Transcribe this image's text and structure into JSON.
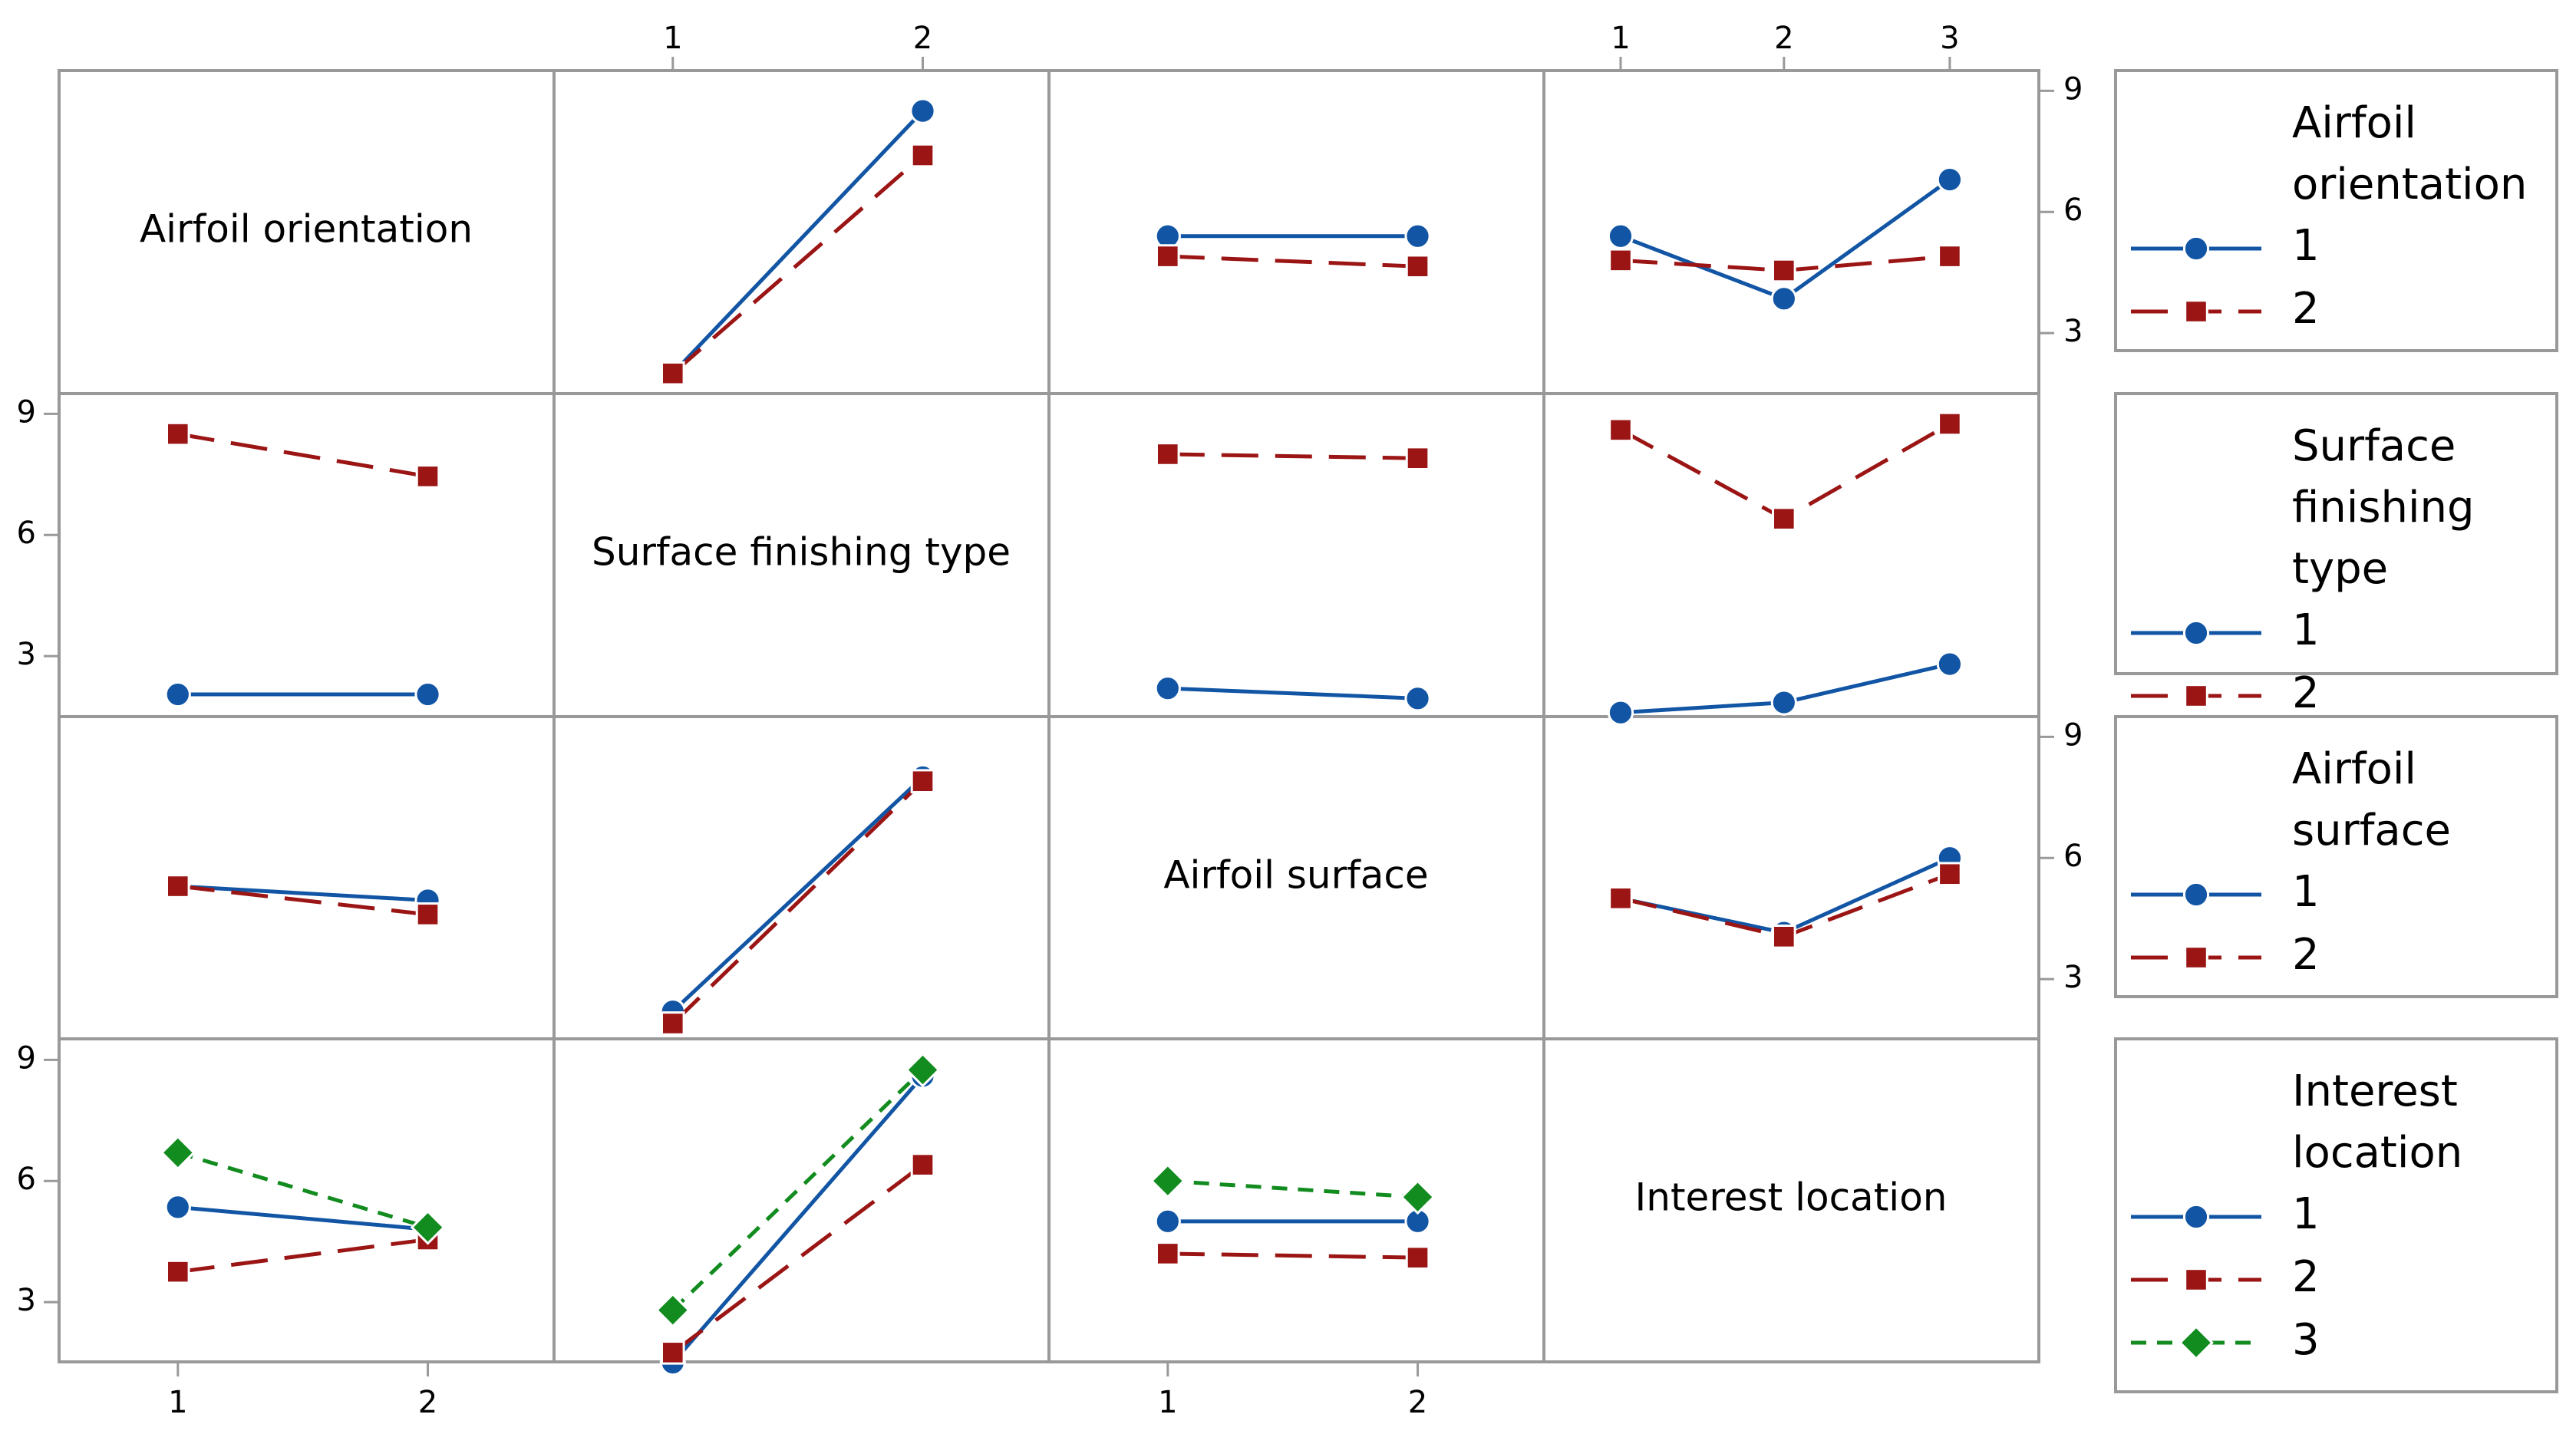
{
  "colors": {
    "level1": "#1155a4",
    "level2": "#9b1515",
    "level3": "#128b1f"
  },
  "chart_data": {
    "type": "line",
    "title": "",
    "y_ticks": [
      3,
      6,
      9
    ],
    "ylim": [
      1.5,
      9.5
    ],
    "factors": [
      {
        "name": "Airfoil orientation",
        "levels": [
          "1",
          "2"
        ]
      },
      {
        "name": "Surface finishing type",
        "levels": [
          "1",
          "2"
        ]
      },
      {
        "name": "Airfoil surface",
        "levels": [
          "1",
          "2"
        ]
      },
      {
        "name": "Interest location",
        "levels": [
          "1",
          "2",
          "3"
        ]
      }
    ],
    "legends": [
      {
        "title_lines": [
          "Airfoil",
          "orientation"
        ],
        "entries": [
          "1",
          "2"
        ]
      },
      {
        "title_lines": [
          "Surface",
          "finishing",
          "type"
        ],
        "entries": [
          "1",
          "2"
        ]
      },
      {
        "title_lines": [
          "Airfoil",
          "surface"
        ],
        "entries": [
          "1",
          "2"
        ]
      },
      {
        "title_lines": [
          "Interest",
          "location"
        ],
        "entries": [
          "1",
          "2",
          "3"
        ]
      }
    ],
    "panels": [
      {
        "row": 0,
        "col": 1,
        "series": [
          {
            "name": "1",
            "values": [
              2.0,
              8.5
            ]
          },
          {
            "name": "2",
            "values": [
              2.0,
              7.4
            ]
          }
        ]
      },
      {
        "row": 0,
        "col": 2,
        "series": [
          {
            "name": "1",
            "values": [
              5.4,
              5.4
            ]
          },
          {
            "name": "2",
            "values": [
              4.9,
              4.65
            ]
          }
        ]
      },
      {
        "row": 0,
        "col": 3,
        "series": [
          {
            "name": "1",
            "values": [
              5.4,
              3.85,
              6.8
            ]
          },
          {
            "name": "2",
            "values": [
              4.8,
              4.55,
              4.9
            ]
          }
        ]
      },
      {
        "row": 1,
        "col": 0,
        "series": [
          {
            "name": "1",
            "values": [
              2.05,
              2.05
            ]
          },
          {
            "name": "2",
            "values": [
              8.5,
              7.45
            ]
          }
        ]
      },
      {
        "row": 1,
        "col": 2,
        "series": [
          {
            "name": "1",
            "values": [
              2.2,
              1.95
            ]
          },
          {
            "name": "2",
            "values": [
              8.0,
              7.9
            ]
          }
        ]
      },
      {
        "row": 1,
        "col": 3,
        "series": [
          {
            "name": "1",
            "values": [
              1.6,
              1.85,
              2.8
            ]
          },
          {
            "name": "2",
            "values": [
              8.6,
              6.4,
              8.75
            ]
          }
        ]
      },
      {
        "row": 2,
        "col": 0,
        "series": [
          {
            "name": "1",
            "values": [
              5.3,
              4.95
            ]
          },
          {
            "name": "2",
            "values": [
              5.3,
              4.6
            ]
          }
        ]
      },
      {
        "row": 2,
        "col": 1,
        "series": [
          {
            "name": "1",
            "values": [
              2.2,
              8.0
            ]
          },
          {
            "name": "2",
            "values": [
              1.9,
              7.9
            ]
          }
        ]
      },
      {
        "row": 2,
        "col": 3,
        "series": [
          {
            "name": "1",
            "values": [
              5.0,
              4.15,
              6.0
            ]
          },
          {
            "name": "2",
            "values": [
              5.0,
              4.05,
              5.6
            ]
          }
        ]
      },
      {
        "row": 3,
        "col": 0,
        "series": [
          {
            "name": "1",
            "values": [
              5.35,
              4.8
            ]
          },
          {
            "name": "2",
            "values": [
              3.75,
              4.55
            ]
          },
          {
            "name": "3",
            "values": [
              6.7,
              4.85
            ]
          }
        ]
      },
      {
        "row": 3,
        "col": 1,
        "series": [
          {
            "name": "1",
            "values": [
              1.5,
              8.6
            ]
          },
          {
            "name": "2",
            "values": [
              1.75,
              6.4
            ]
          },
          {
            "name": "3",
            "values": [
              2.8,
              8.75
            ]
          }
        ]
      },
      {
        "row": 3,
        "col": 2,
        "series": [
          {
            "name": "1",
            "values": [
              5.0,
              5.0
            ]
          },
          {
            "name": "2",
            "values": [
              4.2,
              4.1
            ]
          },
          {
            "name": "3",
            "values": [
              6.0,
              5.6
            ]
          }
        ]
      }
    ]
  }
}
